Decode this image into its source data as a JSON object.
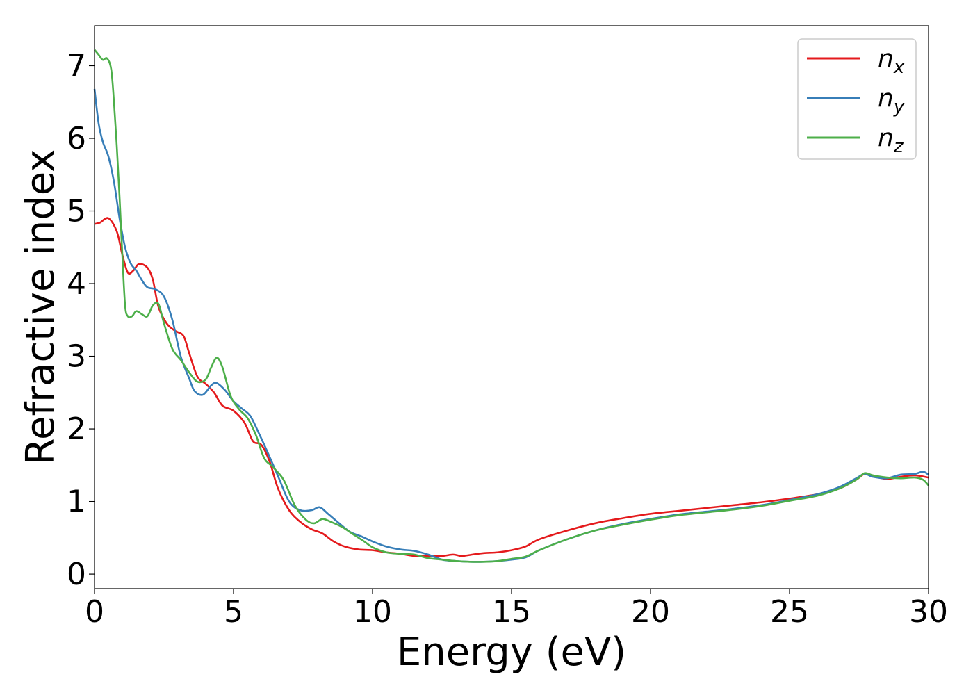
{
  "chart_data": {
    "type": "line",
    "title": "",
    "xlabel": "Energy (eV)",
    "ylabel": "Refractive index",
    "xlim": [
      0,
      30
    ],
    "ylim": [
      -0.2,
      7.55
    ],
    "xticks": [
      0,
      5,
      10,
      15,
      20,
      25,
      30
    ],
    "yticks": [
      0,
      1,
      2,
      3,
      4,
      5,
      6,
      7
    ],
    "grid": false,
    "legend_position": "top-right",
    "series": [
      {
        "name": "n",
        "subscript": "x",
        "color": "#e41a1c",
        "x": [
          0,
          0.2,
          0.5,
          0.8,
          1.0,
          1.2,
          1.4,
          1.6,
          1.9,
          2.1,
          2.3,
          2.6,
          2.9,
          3.2,
          3.4,
          3.7,
          4.0,
          4.3,
          4.6,
          5.0,
          5.4,
          5.7,
          6.0,
          6.3,
          6.6,
          7.0,
          7.4,
          7.8,
          8.2,
          8.6,
          9.0,
          9.5,
          10.0,
          10.5,
          11.0,
          11.5,
          12.0,
          12.5,
          12.9,
          13.2,
          13.6,
          14.0,
          14.5,
          15.0,
          15.5,
          16.0,
          17.0,
          18.0,
          19.0,
          20.0,
          21.0,
          22.0,
          23.0,
          24.0,
          25.0,
          26.0,
          26.8,
          27.4,
          27.7,
          28.0,
          28.5,
          29.0,
          29.5,
          30.0
        ],
        "values": [
          4.82,
          4.84,
          4.9,
          4.72,
          4.4,
          4.15,
          4.18,
          4.27,
          4.22,
          4.05,
          3.68,
          3.45,
          3.35,
          3.28,
          3.05,
          2.72,
          2.62,
          2.5,
          2.32,
          2.25,
          2.08,
          1.83,
          1.78,
          1.55,
          1.18,
          0.88,
          0.72,
          0.62,
          0.56,
          0.45,
          0.38,
          0.34,
          0.33,
          0.3,
          0.28,
          0.25,
          0.25,
          0.25,
          0.27,
          0.25,
          0.27,
          0.29,
          0.3,
          0.33,
          0.38,
          0.48,
          0.6,
          0.7,
          0.77,
          0.83,
          0.87,
          0.91,
          0.95,
          0.99,
          1.04,
          1.1,
          1.18,
          1.3,
          1.38,
          1.35,
          1.31,
          1.34,
          1.36,
          1.33
        ]
      },
      {
        "name": "n",
        "subscript": "y",
        "color": "#377eb8",
        "x": [
          0,
          0.15,
          0.3,
          0.5,
          0.7,
          0.9,
          1.1,
          1.3,
          1.5,
          1.7,
          1.9,
          2.2,
          2.5,
          2.8,
          3.1,
          3.4,
          3.6,
          3.9,
          4.2,
          4.4,
          4.7,
          5.0,
          5.3,
          5.6,
          5.9,
          6.2,
          6.6,
          7.0,
          7.4,
          7.8,
          8.1,
          8.4,
          8.8,
          9.2,
          9.6,
          10.0,
          10.5,
          11.0,
          11.5,
          12.0,
          12.5,
          13.0,
          13.5,
          14.0,
          14.5,
          15.0,
          15.5,
          16.0,
          17.0,
          18.0,
          19.0,
          20.0,
          21.0,
          22.0,
          23.0,
          24.0,
          25.0,
          26.0,
          26.8,
          27.4,
          27.7,
          28.0,
          28.5,
          29.0,
          29.5,
          29.8,
          30.0
        ],
        "values": [
          6.68,
          6.2,
          5.95,
          5.75,
          5.4,
          4.9,
          4.5,
          4.28,
          4.18,
          4.05,
          3.95,
          3.92,
          3.82,
          3.5,
          3.0,
          2.7,
          2.52,
          2.47,
          2.6,
          2.63,
          2.53,
          2.38,
          2.28,
          2.18,
          1.95,
          1.7,
          1.35,
          1.0,
          0.88,
          0.88,
          0.92,
          0.83,
          0.7,
          0.58,
          0.52,
          0.45,
          0.38,
          0.34,
          0.32,
          0.27,
          0.2,
          0.18,
          0.17,
          0.17,
          0.18,
          0.2,
          0.23,
          0.33,
          0.48,
          0.6,
          0.69,
          0.76,
          0.82,
          0.86,
          0.9,
          0.95,
          1.02,
          1.1,
          1.2,
          1.32,
          1.38,
          1.34,
          1.32,
          1.37,
          1.38,
          1.41,
          1.37
        ]
      },
      {
        "name": "n",
        "subscript": "z",
        "color": "#4daf4a",
        "x": [
          0,
          0.15,
          0.3,
          0.45,
          0.6,
          0.7,
          0.8,
          0.9,
          1.0,
          1.1,
          1.2,
          1.35,
          1.5,
          1.7,
          1.9,
          2.1,
          2.3,
          2.5,
          2.8,
          3.1,
          3.4,
          3.7,
          4.0,
          4.2,
          4.4,
          4.6,
          4.9,
          5.2,
          5.5,
          5.8,
          6.1,
          6.4,
          6.8,
          7.2,
          7.6,
          7.9,
          8.2,
          8.5,
          8.9,
          9.3,
          9.7,
          10.0,
          10.5,
          11.0,
          11.5,
          12.0,
          12.5,
          13.0,
          13.5,
          14.0,
          14.5,
          15.0,
          15.5,
          16.0,
          17.0,
          18.0,
          19.0,
          20.0,
          21.0,
          22.0,
          23.0,
          24.0,
          25.0,
          26.0,
          26.8,
          27.4,
          27.7,
          28.0,
          28.5,
          29.0,
          29.5,
          29.8,
          30.0
        ],
        "values": [
          7.22,
          7.15,
          7.08,
          7.1,
          6.95,
          6.5,
          5.9,
          5.2,
          4.4,
          3.7,
          3.55,
          3.55,
          3.62,
          3.58,
          3.55,
          3.7,
          3.72,
          3.45,
          3.1,
          2.95,
          2.78,
          2.65,
          2.68,
          2.85,
          2.98,
          2.85,
          2.45,
          2.27,
          2.15,
          1.92,
          1.6,
          1.48,
          1.3,
          0.95,
          0.75,
          0.7,
          0.76,
          0.72,
          0.65,
          0.55,
          0.45,
          0.37,
          0.3,
          0.28,
          0.27,
          0.22,
          0.2,
          0.18,
          0.17,
          0.17,
          0.18,
          0.21,
          0.24,
          0.33,
          0.48,
          0.6,
          0.68,
          0.75,
          0.81,
          0.85,
          0.89,
          0.94,
          1.01,
          1.08,
          1.18,
          1.3,
          1.39,
          1.36,
          1.33,
          1.32,
          1.33,
          1.3,
          1.22
        ]
      }
    ]
  }
}
